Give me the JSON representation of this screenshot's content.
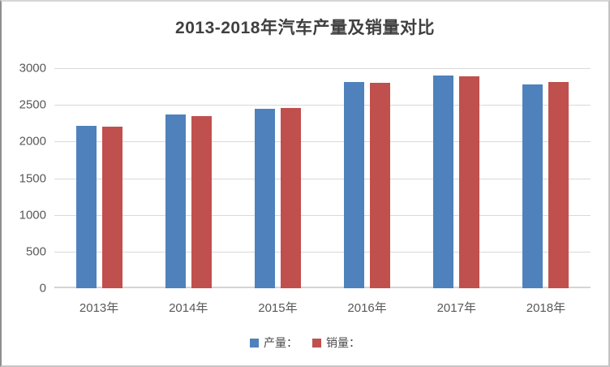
{
  "chart_data": {
    "type": "bar",
    "title": "2013-2018年汽车产量及销量对比",
    "categories": [
      "2013年",
      "2014年",
      "2015年",
      "2016年",
      "2017年",
      "2018年"
    ],
    "series": [
      {
        "name": "产量：",
        "key": "production",
        "color": "#4F81BD",
        "values": [
          2212,
          2372,
          2450,
          2812,
          2902,
          2781
        ]
      },
      {
        "name": "销量：",
        "key": "sales",
        "color": "#C0504D",
        "values": [
          2198,
          2349,
          2460,
          2803,
          2888,
          2808
        ]
      }
    ],
    "xlabel": "",
    "ylabel": "",
    "ylim": [
      0,
      3000
    ],
    "y_ticks": [
      0,
      500,
      1000,
      1500,
      2000,
      2500,
      3000
    ],
    "grid": "horizontal-only",
    "legend_position": "bottom"
  },
  "colors": {
    "grid": "#d9d9d9",
    "axis_text": "#595959",
    "title_text": "#404040",
    "legend_text": "#4a4a4a",
    "background": "#ffffff"
  }
}
